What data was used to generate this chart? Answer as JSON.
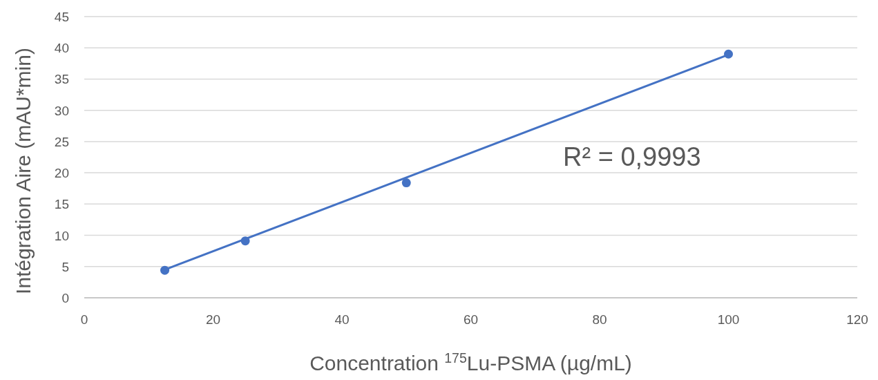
{
  "chart_data": {
    "type": "scatter",
    "xlabel": "Concentration $^{175}$Lu-PSMA (µg/mL)",
    "ylabel": "Intégration Aire (mAU*min)",
    "series": [
      {
        "type": "scatter",
        "color": "#4472c4",
        "marker": "circle",
        "x": [
          12.5,
          25,
          50,
          100
        ],
        "values": [
          4.4,
          9.1,
          18.4,
          39.0
        ]
      },
      {
        "type": "line",
        "color": "#4472c4",
        "line_style": "solid",
        "x": [
          12.5,
          100
        ],
        "values": [
          4.5,
          38.9
        ]
      }
    ],
    "annotations": [
      "R² = 0,9993"
    ],
    "xlim": [
      0,
      120
    ],
    "xticks": [
      0,
      20,
      40,
      60,
      80,
      100,
      120
    ],
    "ylim": [
      0,
      45
    ],
    "yticks": [
      0,
      5,
      10,
      15,
      20,
      25,
      30,
      35,
      40,
      45
    ],
    "grid": "y"
  }
}
